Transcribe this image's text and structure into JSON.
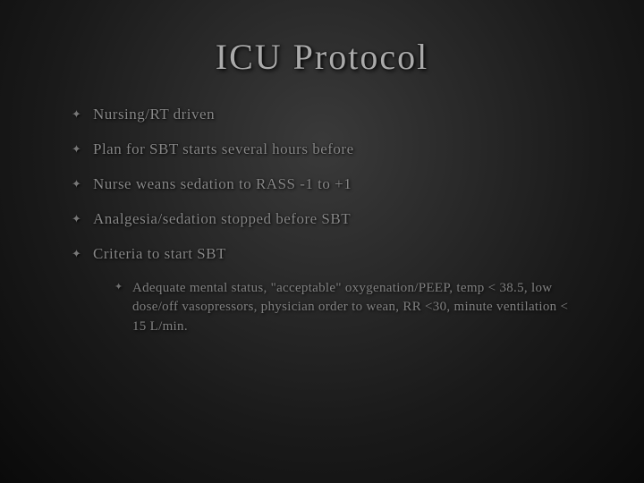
{
  "slide": {
    "title": "ICU Protocol",
    "title_fontsize": 40,
    "title_color": "#aaaaaa",
    "background_gradient_center": "#3a3a3a",
    "background_gradient_edge": "#0a0a0a",
    "body_text_color": "#888888",
    "body_fontsize": 17,
    "sub_text_color": "#808080",
    "sub_fontsize": 15,
    "bullet_glyph": "✦",
    "items": [
      {
        "text": "Nursing/RT driven"
      },
      {
        "text": "Plan for SBT starts several hours before"
      },
      {
        "text": "Nurse weans sedation to RASS -1 to +1"
      },
      {
        "text": "Analgesia/sedation stopped before SBT"
      },
      {
        "text": "Criteria to start SBT"
      }
    ],
    "subitems": [
      {
        "text": "Adequate mental status, \"acceptable\" oxygenation/PEEP, temp < 38.5, low dose/off vasopressors, physician order to wean, RR <30, minute ventilation < 15 L/min."
      }
    ]
  }
}
